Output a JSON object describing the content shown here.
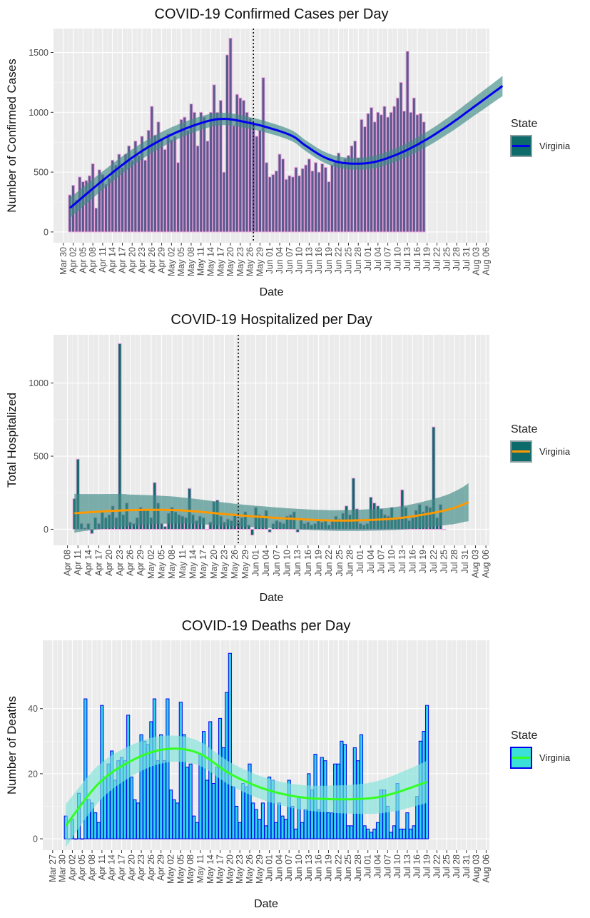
{
  "chart_data": [
    {
      "type": "bar",
      "title": "COVID-19 Confirmed Cases per Day",
      "xlabel": "Date",
      "ylabel": "Number of Confirmed Cases",
      "legend_title": "State",
      "legend_placement": "right",
      "x_tick_labels": [
        "Mar 30",
        "Apr 02",
        "Apr 05",
        "Apr 08",
        "Apr 11",
        "Apr 14",
        "Apr 17",
        "Apr 20",
        "Apr 23",
        "Apr 26",
        "Apr 29",
        "May 02",
        "May 05",
        "May 08",
        "May 11",
        "May 14",
        "May 17",
        "May 20",
        "May 23",
        "May 26",
        "May 29",
        "Jun 01",
        "Jun 04",
        "Jun 07",
        "Jun 10",
        "Jun 13",
        "Jun 16",
        "Jun 19",
        "Jun 22",
        "Jun 25",
        "Jun 28",
        "Jul 01",
        "Jul 04",
        "Jul 07",
        "Jul 10",
        "Jul 13",
        "Jul 16",
        "Jul 19",
        "Jul 22",
        "Jul 25",
        "Jul 28",
        "Jul 31",
        "Aug 03",
        "Aug 06"
      ],
      "y_ticks": [
        0,
        500,
        1000,
        1500
      ],
      "ylim": [
        -90,
        1700
      ],
      "x_start": "2020-03-27",
      "x_end": "2020-08-07",
      "series": [
        {
          "name": "Virginia",
          "start": "2020-04-01",
          "values": [
            310,
            390,
            270,
            460,
            420,
            430,
            470,
            570,
            200,
            520,
            480,
            400,
            450,
            600,
            560,
            650,
            540,
            650,
            720,
            600,
            760,
            640,
            800,
            600,
            850,
            1050,
            810,
            920,
            780,
            690,
            820,
            770,
            800,
            580,
            940,
            960,
            850,
            1070,
            1000,
            720,
            1000,
            960,
            760,
            1000,
            1230,
            1000,
            1100,
            500,
            1480,
            1620,
            890,
            1150,
            1120,
            1100,
            1000,
            950,
            890,
            800,
            850,
            1290,
            580,
            460,
            480,
            510,
            650,
            610,
            440,
            470,
            460,
            540,
            470,
            530,
            560,
            610,
            510,
            580,
            500,
            570,
            540,
            420,
            560,
            590,
            660,
            580,
            610,
            640,
            720,
            760,
            620,
            940,
            880,
            990,
            1040,
            920,
            1000,
            980,
            1050,
            960,
            1000,
            1050,
            1120,
            1250,
            1010,
            1510,
            1000,
            1120,
            980,
            990,
            920
          ],
          "trend": [
            [
              0,
              200
            ],
            [
              10,
              430
            ],
            [
              20,
              640
            ],
            [
              30,
              800
            ],
            [
              40,
              910
            ],
            [
              47,
              945
            ],
            [
              55,
              910
            ],
            [
              62,
              860
            ],
            [
              68,
              800
            ],
            [
              72,
              720
            ],
            [
              78,
              620
            ],
            [
              84,
              575
            ],
            [
              92,
              580
            ],
            [
              100,
              650
            ],
            [
              108,
              760
            ],
            [
              116,
              900
            ],
            [
              124,
              1060
            ],
            [
              132,
              1220
            ]
          ],
          "trend_band": 45,
          "bar_fill": "#5a5a8c",
          "bar_outline": "#f2a6e0",
          "band_color": "#3d8a86",
          "trend_color": "#0000ee",
          "legend_swatch": "#0e6b6b"
        }
      ],
      "vline_date": "2020-05-27"
    },
    {
      "type": "bar",
      "title": "COVID-19 Hospitalized per Day",
      "xlabel": "Date",
      "ylabel": "Total Hospitalized",
      "legend_title": "State",
      "legend_placement": "right",
      "x_tick_labels": [
        "Apr 08",
        "Apr 11",
        "Apr 14",
        "Apr 17",
        "Apr 20",
        "Apr 23",
        "Apr 26",
        "Apr 29",
        "May 02",
        "May 05",
        "May 08",
        "May 11",
        "May 14",
        "May 17",
        "May 20",
        "May 23",
        "May 26",
        "May 29",
        "Jun 01",
        "Jun 04",
        "Jun 07",
        "Jun 10",
        "Jun 13",
        "Jun 16",
        "Jun 19",
        "Jun 22",
        "Jun 25",
        "Jun 28",
        "Jul 01",
        "Jul 04",
        "Jul 07",
        "Jul 10",
        "Jul 13",
        "Jul 16",
        "Jul 19",
        "Jul 22",
        "Jul 25",
        "Jul 28",
        "Jul 31",
        "Aug 03",
        "Aug 06"
      ],
      "y_ticks": [
        0,
        500,
        1000
      ],
      "ylim": [
        -110,
        1330
      ],
      "x_start": "2020-04-04",
      "x_end": "2020-08-07",
      "series": [
        {
          "name": "Virginia",
          "start": "2020-04-10",
          "values": [
            210,
            480,
            40,
            10,
            40,
            -30,
            80,
            40,
            120,
            80,
            100,
            160,
            80,
            1270,
            100,
            180,
            50,
            40,
            80,
            150,
            130,
            130,
            80,
            320,
            180,
            40,
            20,
            110,
            150,
            120,
            100,
            90,
            80,
            280,
            100,
            60,
            90,
            80,
            0,
            50,
            190,
            200,
            90,
            50,
            70,
            60,
            100,
            50,
            80,
            120,
            30,
            -40,
            150,
            100,
            80,
            130,
            -20,
            40,
            60,
            50,
            40,
            90,
            100,
            120,
            -20,
            70,
            40,
            50,
            30,
            40,
            60,
            50,
            60,
            30,
            60,
            90,
            70,
            110,
            160,
            100,
            350,
            140,
            40,
            30,
            40,
            220,
            180,
            160,
            140,
            100,
            90,
            150,
            80,
            80,
            270,
            150,
            60,
            80,
            130,
            170,
            120,
            160,
            150,
            700,
            80,
            170,
            0
          ],
          "trend": [
            [
              0,
              110
            ],
            [
              15,
              130
            ],
            [
              30,
              130
            ],
            [
              45,
              100
            ],
            [
              60,
              75
            ],
            [
              75,
              60
            ],
            [
              90,
              70
            ],
            [
              100,
              100
            ],
            [
              108,
              140
            ],
            [
              113,
              185
            ]
          ],
          "trend_band": 70,
          "bar_fill": "#0e6b6b",
          "bar_outline": "#f2a6e0",
          "band_color": "#3d8a86",
          "trend_color": "#ff9900",
          "legend_swatch": "#0e6b6b"
        }
      ],
      "vline_date": "2020-05-27"
    },
    {
      "type": "bar",
      "title": "COVID-19 Deaths per Day",
      "xlabel": "Date",
      "ylabel": "Number of Deaths",
      "legend_title": "State",
      "legend_placement": "right",
      "x_tick_labels": [
        "Mar 27",
        "Mar 30",
        "Apr 02",
        "Apr 05",
        "Apr 08",
        "Apr 11",
        "Apr 14",
        "Apr 17",
        "Apr 20",
        "Apr 23",
        "Apr 26",
        "Apr 29",
        "May 02",
        "May 05",
        "May 08",
        "May 11",
        "May 14",
        "May 17",
        "May 20",
        "May 23",
        "May 26",
        "May 29",
        "Jun 01",
        "Jun 04",
        "Jun 07",
        "Jun 10",
        "Jun 13",
        "Jun 16",
        "Jun 19",
        "Jun 22",
        "Jun 25",
        "Jun 28",
        "Jul 01",
        "Jul 04",
        "Jul 07",
        "Jul 10",
        "Jul 13",
        "Jul 16",
        "Jul 19",
        "Jul 22",
        "Jul 25",
        "Jul 28",
        "Jul 31",
        "Aug 03",
        "Aug 06"
      ],
      "y_ticks": [
        0,
        20,
        40
      ],
      "ylim": [
        -3.5,
        61
      ],
      "x_start": "2020-03-24",
      "x_end": "2020-08-07",
      "series": [
        {
          "name": "Virginia",
          "start": "2020-03-31",
          "values": [
            7,
            0,
            6,
            0,
            14,
            0,
            43,
            12,
            11,
            8,
            5,
            41,
            19,
            23,
            27,
            18,
            24,
            25,
            24,
            38,
            19,
            12,
            11,
            32,
            30,
            29,
            36,
            43,
            24,
            32,
            24,
            43,
            15,
            12,
            11,
            42,
            32,
            22,
            23,
            7,
            5,
            26,
            33,
            18,
            36,
            17,
            22,
            37,
            28,
            45,
            57,
            16,
            10,
            5,
            17,
            16,
            23,
            11,
            9,
            6,
            11,
            4,
            19,
            18,
            5,
            11,
            7,
            6,
            18,
            10,
            3,
            13,
            5,
            9,
            20,
            15,
            26,
            9,
            25,
            24,
            8,
            8,
            23,
            23,
            30,
            29,
            4,
            4,
            28,
            24,
            32,
            4,
            3,
            2,
            3,
            5,
            15,
            15,
            10,
            2,
            4,
            17,
            3,
            3,
            8,
            3,
            4,
            13,
            30,
            33,
            41
          ],
          "trend": [
            [
              0,
              4
            ],
            [
              10,
              17
            ],
            [
              20,
              24
            ],
            [
              30,
              27.5
            ],
            [
              40,
              26.5
            ],
            [
              50,
              20
            ],
            [
              60,
              15.5
            ],
            [
              70,
              13
            ],
            [
              80,
              12.2
            ],
            [
              92,
              12.4
            ],
            [
              100,
              14
            ],
            [
              110,
              17.5
            ]
          ],
          "trend_band": 3.5,
          "bar_fill": "#2fd4e8",
          "bar_outline": "#0000ee",
          "band_color": "#7fe3dc",
          "trend_color": "#33ff22",
          "legend_swatch": "#3be0d8"
        }
      ]
    }
  ]
}
